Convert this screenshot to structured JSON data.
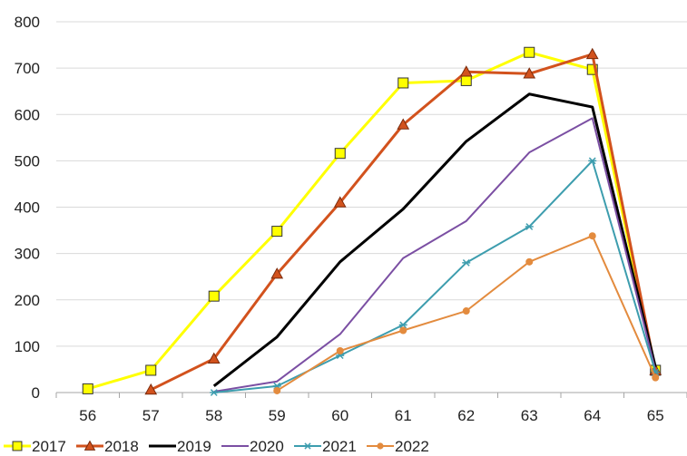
{
  "chart_data": {
    "type": "line",
    "title": "",
    "xlabel": "",
    "ylabel": "",
    "categories": [
      "56",
      "57",
      "58",
      "59",
      "60",
      "61",
      "62",
      "63",
      "64",
      "65"
    ],
    "ylim": [
      0,
      800
    ],
    "yticks": [
      "0",
      "100",
      "200",
      "300",
      "400",
      "500",
      "600",
      "700",
      "800"
    ],
    "grid": "horizontal",
    "legend_position": "bottom",
    "series": [
      {
        "name": "2017",
        "color": "#FFFF00",
        "marker": "square",
        "values": [
          8,
          48,
          208,
          348,
          516,
          668,
          673,
          734,
          697,
          48
        ]
      },
      {
        "name": "2018",
        "color": "#D2521D",
        "marker": "triangle",
        "values": [
          null,
          6,
          73,
          256,
          410,
          578,
          692,
          688,
          730,
          48
        ]
      },
      {
        "name": "2019",
        "color": "#000000",
        "marker": "none",
        "values": [
          null,
          null,
          14,
          120,
          282,
          396,
          542,
          644,
          616,
          55
        ]
      },
      {
        "name": "2020",
        "color": "#7B4FA3",
        "marker": "none",
        "values": [
          null,
          null,
          2,
          24,
          126,
          290,
          370,
          518,
          592,
          48
        ]
      },
      {
        "name": "2021",
        "color": "#3D9DAE",
        "marker": "star",
        "values": [
          null,
          null,
          0,
          14,
          80,
          146,
          280,
          358,
          500,
          44
        ]
      },
      {
        "name": "2022",
        "color": "#E38B3E",
        "marker": "circle",
        "values": [
          null,
          null,
          null,
          4,
          90,
          134,
          176,
          282,
          338,
          32
        ]
      }
    ]
  }
}
